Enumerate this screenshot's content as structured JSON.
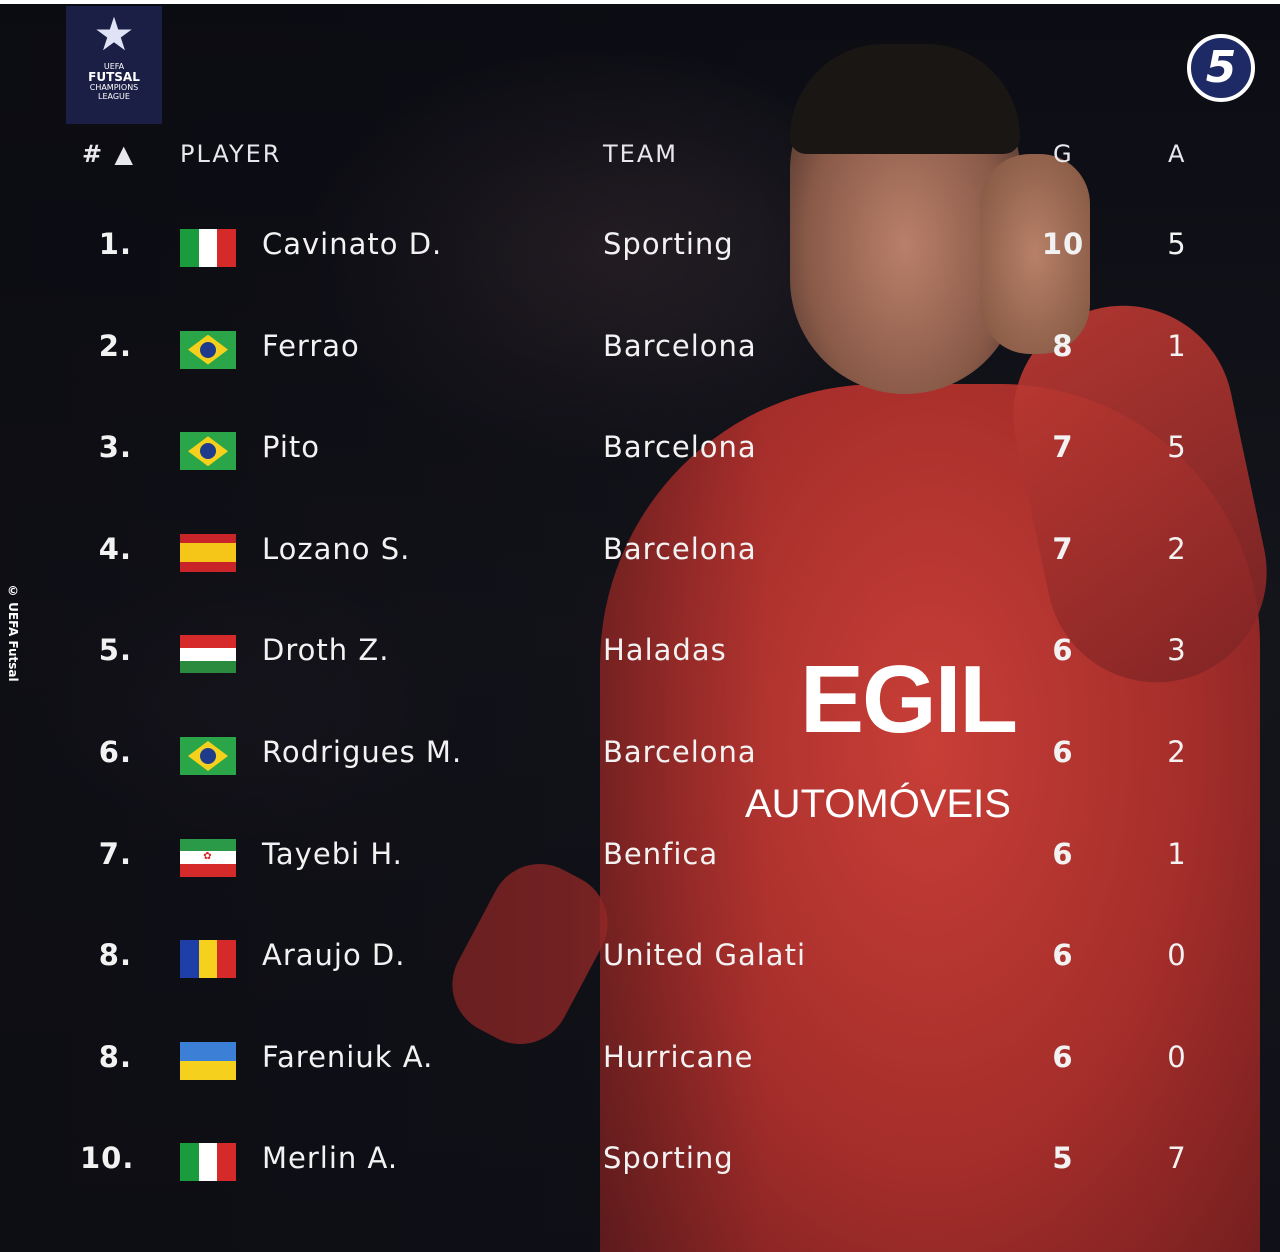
{
  "logo": {
    "title": "FUTSAL",
    "subtitle1": "CHAMPIONS",
    "subtitle2": "LEAGUE",
    "text": "UEFA"
  },
  "badge": "5",
  "watermark": "© UEFA Futsal",
  "sponsor": {
    "main": "EGIL",
    "sub": "AUTOMÓVEIS"
  },
  "headers": {
    "rank": "# ▲",
    "player": "PLAYER",
    "team": "TEAM",
    "goals": "G",
    "assists": "A"
  },
  "rows": [
    {
      "rank": "1.",
      "flag": "italy",
      "name": "Cavinato D.",
      "team": "Sporting",
      "g": "10",
      "a": "5"
    },
    {
      "rank": "2.",
      "flag": "brazil",
      "name": "Ferrao",
      "team": "Barcelona",
      "g": "8",
      "a": "1"
    },
    {
      "rank": "3.",
      "flag": "brazil",
      "name": "Pito",
      "team": "Barcelona",
      "g": "7",
      "a": "5"
    },
    {
      "rank": "4.",
      "flag": "spain",
      "name": "Lozano S.",
      "team": "Barcelona",
      "g": "7",
      "a": "2"
    },
    {
      "rank": "5.",
      "flag": "hungary",
      "name": "Droth Z.",
      "team": "Haladas",
      "g": "6",
      "a": "3"
    },
    {
      "rank": "6.",
      "flag": "brazil",
      "name": "Rodrigues M.",
      "team": "Barcelona",
      "g": "6",
      "a": "2"
    },
    {
      "rank": "7.",
      "flag": "iran",
      "name": "Tayebi H.",
      "team": "Benfica",
      "g": "6",
      "a": "1"
    },
    {
      "rank": "8.",
      "flag": "romania",
      "name": "Araujo D.",
      "team": "United Galati",
      "g": "6",
      "a": "0"
    },
    {
      "rank": "8.",
      "flag": "ukraine",
      "name": "Fareniuk A.",
      "team": "Hurricane",
      "g": "6",
      "a": "0"
    },
    {
      "rank": "10.",
      "flag": "italy",
      "name": "Merlin A.",
      "team": "Sporting",
      "g": "5",
      "a": "7"
    }
  ]
}
